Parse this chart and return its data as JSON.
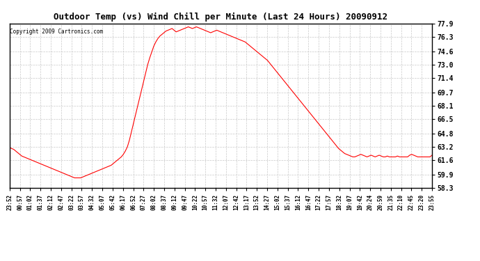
{
  "title": "Outdoor Temp (vs) Wind Chill per Minute (Last 24 Hours) 20090912",
  "copyright": "Copyright 2009 Cartronics.com",
  "line_color": "#ff0000",
  "bg_color": "#ffffff",
  "grid_color": "#c8c8c8",
  "ymin": 58.3,
  "ymax": 77.9,
  "yticks": [
    77.9,
    76.3,
    74.6,
    73.0,
    71.4,
    69.7,
    68.1,
    66.5,
    64.8,
    63.2,
    61.6,
    59.9,
    58.3
  ],
  "xtick_labels": [
    "23:52",
    "00:57",
    "01:02",
    "01:37",
    "02:12",
    "02:47",
    "03:22",
    "03:57",
    "04:32",
    "05:07",
    "05:42",
    "06:17",
    "06:52",
    "07:27",
    "08:02",
    "08:37",
    "09:12",
    "09:47",
    "10:22",
    "10:57",
    "11:32",
    "12:07",
    "12:42",
    "13:17",
    "13:52",
    "14:27",
    "15:02",
    "15:37",
    "16:12",
    "16:47",
    "17:22",
    "17:57",
    "18:32",
    "19:07",
    "19:42",
    "20:24",
    "20:59",
    "21:35",
    "22:10",
    "22:45",
    "23:20",
    "23:55"
  ],
  "temp_data": [
    63.1,
    63.0,
    62.9,
    62.7,
    62.5,
    62.3,
    62.1,
    62.0,
    61.9,
    61.8,
    61.7,
    61.6,
    61.5,
    61.4,
    61.3,
    61.2,
    61.1,
    61.0,
    60.9,
    60.8,
    60.7,
    60.6,
    60.5,
    60.4,
    60.3,
    60.2,
    60.1,
    60.0,
    59.9,
    59.8,
    59.7,
    59.6,
    59.5,
    59.5,
    59.5,
    59.5,
    59.6,
    59.7,
    59.8,
    59.9,
    60.0,
    60.1,
    60.2,
    60.3,
    60.4,
    60.5,
    60.6,
    60.7,
    60.8,
    60.9,
    61.0,
    61.2,
    61.4,
    61.6,
    61.8,
    62.0,
    62.3,
    62.7,
    63.2,
    64.0,
    65.0,
    66.0,
    67.0,
    68.0,
    69.0,
    70.0,
    71.0,
    72.0,
    73.0,
    73.8,
    74.5,
    75.2,
    75.7,
    76.1,
    76.4,
    76.6,
    76.8,
    77.0,
    77.1,
    77.2,
    77.3,
    77.1,
    76.9,
    77.0,
    77.1,
    77.2,
    77.3,
    77.4,
    77.5,
    77.4,
    77.3,
    77.4,
    77.5,
    77.4,
    77.3,
    77.2,
    77.1,
    77.0,
    76.9,
    76.8,
    76.9,
    77.0,
    77.1,
    77.0,
    76.9,
    76.8,
    76.7,
    76.6,
    76.5,
    76.4,
    76.3,
    76.2,
    76.1,
    76.0,
    75.9,
    75.8,
    75.7,
    75.5,
    75.3,
    75.1,
    74.9,
    74.7,
    74.5,
    74.3,
    74.1,
    73.9,
    73.7,
    73.5,
    73.2,
    72.9,
    72.6,
    72.3,
    72.0,
    71.7,
    71.4,
    71.1,
    70.8,
    70.5,
    70.2,
    69.9,
    69.6,
    69.3,
    69.0,
    68.7,
    68.4,
    68.1,
    67.8,
    67.5,
    67.2,
    66.9,
    66.6,
    66.3,
    66.0,
    65.7,
    65.4,
    65.1,
    64.8,
    64.5,
    64.2,
    63.9,
    63.6,
    63.3,
    63.0,
    62.8,
    62.6,
    62.4,
    62.3,
    62.2,
    62.1,
    62.0,
    62.0,
    62.1,
    62.2,
    62.3,
    62.2,
    62.1,
    62.0,
    62.1,
    62.2,
    62.1,
    62.0,
    62.1,
    62.2,
    62.1,
    62.0,
    62.0,
    62.1,
    62.0,
    62.0,
    62.0,
    62.0,
    62.1,
    62.0,
    62.0,
    62.0,
    62.0,
    62.0,
    62.2,
    62.3,
    62.2,
    62.1,
    62.0,
    62.0,
    62.0,
    62.0,
    62.0,
    62.0,
    62.0,
    62.2
  ]
}
